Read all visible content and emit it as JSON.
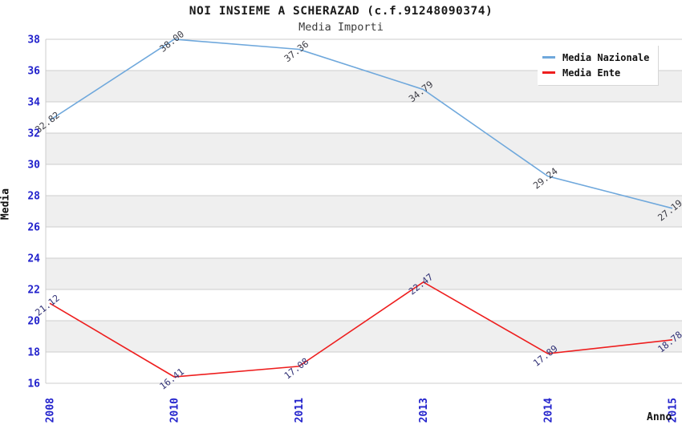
{
  "header": {
    "title": "NOI INSIEME A SCHERAZAD (c.f.91248090374)",
    "subtitle": "Media Importi"
  },
  "axes": {
    "ylabel": "Media",
    "xlabel": "Anno"
  },
  "legend": {
    "items": [
      {
        "label": "Media Nazionale",
        "color": "#6fa8dc"
      },
      {
        "label": "Media Ente",
        "color": "#ee1e1e"
      }
    ]
  },
  "chart_data": {
    "type": "line",
    "title": "NOI INSIEME A SCHERAZAD (c.f.91248090374)",
    "subtitle": "Media Importi",
    "xlabel": "Anno",
    "ylabel": "Media",
    "categories": [
      "2008",
      "2010",
      "2011",
      "2013",
      "2014",
      "2015"
    ],
    "series": [
      {
        "name": "Media Nazionale",
        "color": "#6fa8dc",
        "label_color": "#3d3d46",
        "values": [
          32.82,
          38.0,
          37.36,
          34.79,
          29.24,
          27.19
        ]
      },
      {
        "name": "Media Ente",
        "color": "#ee1e1e",
        "label_color": "#333377",
        "values": [
          21.12,
          16.41,
          17.08,
          22.47,
          17.89,
          18.78
        ]
      }
    ],
    "ylim": [
      16,
      38
    ],
    "ytick_step": 2,
    "grid": "horizontal-only",
    "band_colors": [
      "#ffffff",
      "#efefef"
    ],
    "grid_color": "#cccccc",
    "tick_color": "#2222cc",
    "legend_position": "top-right",
    "point_label_decimals": 2
  }
}
